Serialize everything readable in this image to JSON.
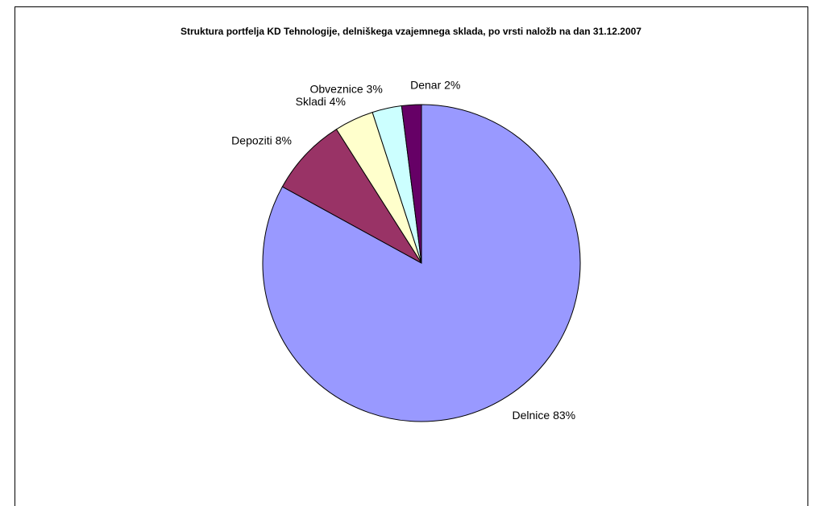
{
  "chart_data": {
    "type": "pie",
    "title": "Struktura portfelja KD Tehnologije, delniškega vzajemnega sklada, po vrsti naložb na dan 31.12.2007",
    "categories": [
      "Delnice",
      "Depoziti",
      "Skladi",
      "Obveznice",
      "Denar"
    ],
    "values": [
      83,
      8,
      4,
      3,
      2
    ],
    "value_labels": [
      "83%",
      "8%",
      "4%",
      "3%",
      "2%"
    ],
    "colors": [
      "#9999ff",
      "#993366",
      "#ffffcc",
      "#ccffff",
      "#660066"
    ]
  }
}
